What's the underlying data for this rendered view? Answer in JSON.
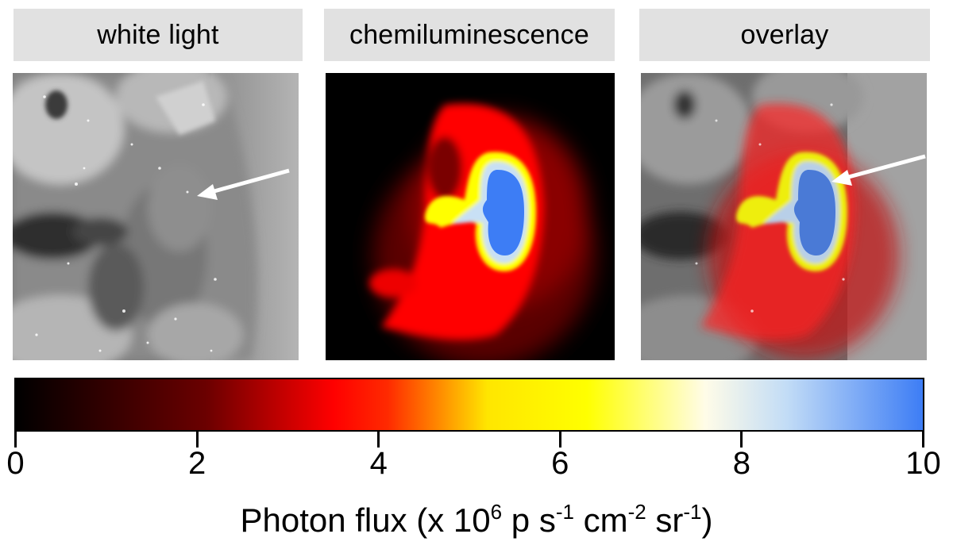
{
  "panels": [
    {
      "label": "white light"
    },
    {
      "label": "chemiluminescence"
    },
    {
      "label": "overlay"
    }
  ],
  "colorbar": {
    "min": 0,
    "max": 10,
    "ticks": [
      "0",
      "2",
      "4",
      "6",
      "8",
      "10"
    ],
    "stops": [
      {
        "value": 0,
        "color": "#000000"
      },
      {
        "value": 2.1,
        "color": "#6b0000"
      },
      {
        "value": 3.5,
        "color": "#ff0000"
      },
      {
        "value": 4.1,
        "color": "#ff2a00"
      },
      {
        "value": 5.2,
        "color": "#ffe600"
      },
      {
        "value": 6.3,
        "color": "#ffff00"
      },
      {
        "value": 7.6,
        "color": "#fffce8"
      },
      {
        "value": 8.5,
        "color": "#c2dcf6"
      },
      {
        "value": 10,
        "color": "#3d7df5"
      }
    ],
    "label": {
      "prefix": "Photon flux (x 10",
      "exp1": "6",
      "t2": " p s",
      "exp2": "-1",
      "t3": " cm",
      "exp3": "-2",
      "t4": " sr",
      "exp4": "-1",
      "suffix": ")"
    }
  }
}
